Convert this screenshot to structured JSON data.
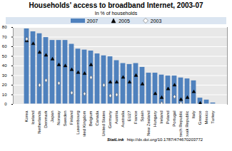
{
  "chart_data": {
    "type": "bar",
    "title": "Households' access to broadband Internet, 2003-07",
    "subtitle": "In % of households",
    "source": "StatLink",
    "source_url": "http://dx.doi.org/10.1787/474670203772",
    "categories": [
      "Korea",
      "Iceland",
      "Netherlands",
      "Denmark",
      "Japan",
      "Norway",
      "Sweden",
      "Finland",
      "Luxembourg",
      "United Kingdom",
      "Belgium",
      "Canada",
      "United States",
      "Germany",
      "Austria",
      "Australia",
      "EU27",
      "France",
      "Spain",
      "New Zealand",
      "Hungary",
      "Ireland",
      "Poland",
      "Portugal",
      "Czech Republic",
      "Slovak Republic",
      "Italy",
      "Greece",
      "Mexico",
      "Turkey"
    ],
    "series": [
      {
        "name": "2007",
        "type": "bar",
        "color": "#4f81bd",
        "values": [
          79,
          76,
          74,
          70,
          67,
          67,
          67,
          63,
          58,
          57,
          56,
          53,
          51,
          50,
          46,
          43,
          42,
          43,
          39,
          33,
          33,
          31,
          30,
          30,
          28,
          27,
          25,
          7,
          5,
          2
        ]
      },
      {
        "name": "2005",
        "type": "scatter",
        "marker": "triangle",
        "color": "#000000",
        "values": [
          66,
          63,
          54,
          51,
          47,
          41,
          40,
          36,
          33,
          32,
          41,
          null,
          null,
          23,
          23,
          28,
          23,
          30,
          21,
          null,
          11,
          7,
          16,
          20,
          5,
          7,
          13,
          1,
          null,
          null
        ]
      },
      {
        "name": "2003",
        "type": "scatter",
        "marker": "diamond",
        "color": "#ffffff",
        "values": [
          68,
          null,
          20,
          25,
          null,
          22,
          null,
          12,
          null,
          11,
          28,
          null,
          20,
          9,
          10,
          null,
          null,
          null,
          null,
          null,
          null,
          1,
          null,
          8,
          1,
          null,
          null,
          null,
          null,
          null
        ]
      }
    ],
    "ylim": [
      0,
      80
    ],
    "yticks": [
      0,
      10,
      20,
      30,
      40,
      50,
      60,
      70,
      80
    ],
    "grid": true,
    "legend": "top"
  }
}
